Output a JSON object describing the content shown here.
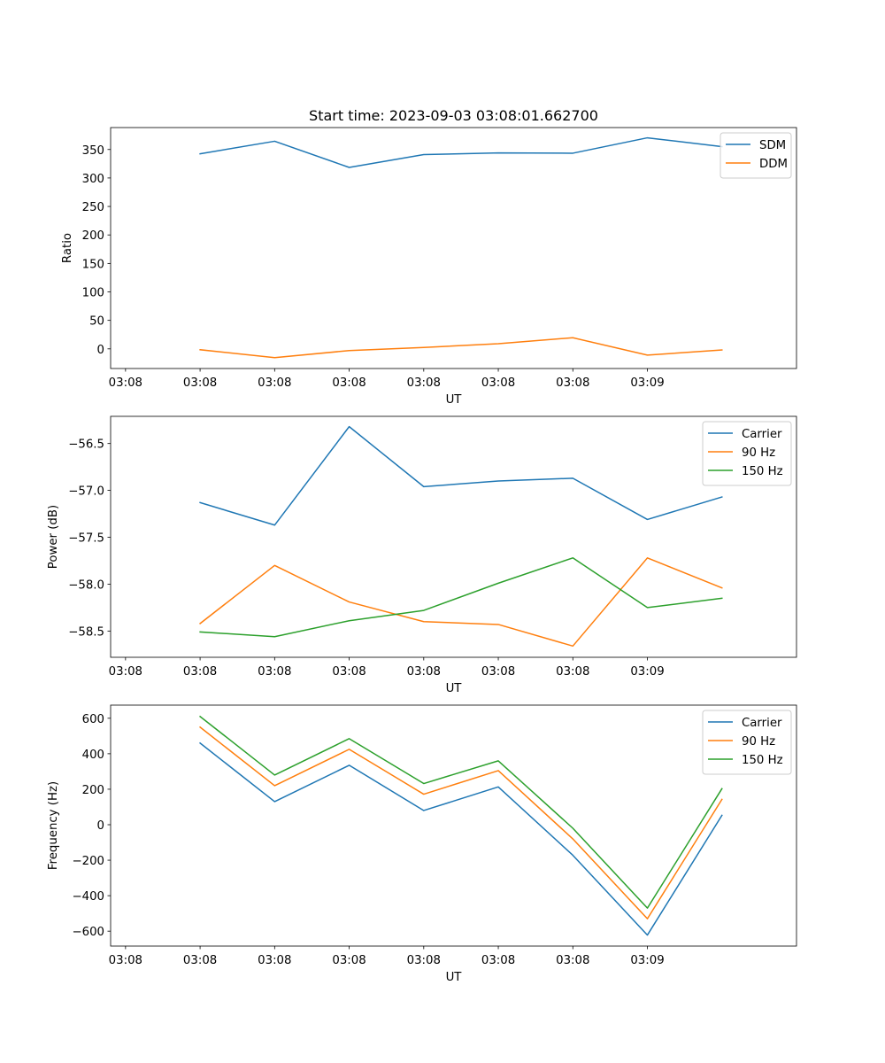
{
  "colors": {
    "blue": "#1f77b4",
    "orange": "#ff7f0e",
    "green": "#2ca02c"
  },
  "chart_data": [
    {
      "type": "line",
      "title": "Start time: 2023-09-03 03:08:01.662700",
      "xlabel": "UT",
      "ylabel": "Ratio",
      "x_ticklabels": [
        "03:08",
        "03:08",
        "03:08",
        "03:08",
        "03:08",
        "03:08",
        "03:08",
        "03:09"
      ],
      "yticks": [
        0,
        50,
        100,
        150,
        200,
        250,
        300,
        350
      ],
      "ylim": [
        -34.5,
        388.5
      ],
      "x": [
        1,
        2,
        3,
        4,
        5,
        6,
        7,
        8
      ],
      "xlim": [
        -0.2,
        9.0
      ],
      "legend": "top-right",
      "series": [
        {
          "name": "SDM",
          "color": "#1f77b4",
          "values": [
            342.5,
            364.5,
            318.5,
            341,
            344,
            343.5,
            370.5,
            355
          ]
        },
        {
          "name": "DDM",
          "color": "#ff7f0e",
          "values": [
            -1.5,
            -15.5,
            -3,
            2.5,
            9,
            19.5,
            -11,
            -2
          ]
        }
      ]
    },
    {
      "type": "line",
      "title": "",
      "xlabel": "UT",
      "ylabel": "Power (dB)",
      "x_ticklabels": [
        "03:08",
        "03:08",
        "03:08",
        "03:08",
        "03:08",
        "03:08",
        "03:08",
        "03:09"
      ],
      "yticks": [
        -58.5,
        -58.0,
        -57.5,
        -57.0,
        -56.5
      ],
      "ytick_labels": [
        "−58.5",
        "−58.0",
        "−57.5",
        "−57.0",
        "−56.5"
      ],
      "ylim": [
        -58.78,
        -56.21
      ],
      "x": [
        1,
        2,
        3,
        4,
        5,
        6,
        7,
        8
      ],
      "xlim": [
        -0.2,
        9.0
      ],
      "legend": "top-right",
      "series": [
        {
          "name": "Carrier",
          "color": "#1f77b4",
          "values": [
            -57.13,
            -57.37,
            -56.32,
            -56.96,
            -56.9,
            -56.87,
            -57.31,
            -57.07
          ]
        },
        {
          "name": "90 Hz",
          "color": "#ff7f0e",
          "values": [
            -58.42,
            -57.8,
            -58.19,
            -58.4,
            -58.43,
            -58.66,
            -57.72,
            -58.04
          ]
        },
        {
          "name": "150 Hz",
          "color": "#2ca02c",
          "values": [
            -58.51,
            -58.56,
            -58.39,
            -58.28,
            -57.99,
            -57.72,
            -58.25,
            -58.15
          ]
        }
      ]
    },
    {
      "type": "line",
      "title": "",
      "xlabel": "UT",
      "ylabel": "Frequency (Hz)",
      "x_ticklabels": [
        "03:08",
        "03:08",
        "03:08",
        "03:08",
        "03:08",
        "03:08",
        "03:08",
        "03:09"
      ],
      "yticks": [
        -600,
        -400,
        -200,
        0,
        200,
        400,
        600
      ],
      "ytick_labels": [
        "−600",
        "−400",
        "−200",
        "0",
        "200",
        "400",
        "600"
      ],
      "ylim": [
        -684,
        674
      ],
      "x": [
        1,
        2,
        3,
        4,
        5,
        6,
        7,
        8
      ],
      "xlim": [
        -0.2,
        9.0
      ],
      "legend": "top-right",
      "series": [
        {
          "name": "Carrier",
          "color": "#1f77b4",
          "values": [
            460,
            130,
            335,
            80,
            213,
            -172,
            -622,
            53
          ]
        },
        {
          "name": "90 Hz",
          "color": "#ff7f0e",
          "values": [
            550,
            220,
            425,
            172,
            305,
            -80,
            -530,
            143
          ]
        },
        {
          "name": "150 Hz",
          "color": "#2ca02c",
          "values": [
            610,
            280,
            485,
            232,
            360,
            -20,
            -470,
            203
          ]
        }
      ]
    }
  ]
}
